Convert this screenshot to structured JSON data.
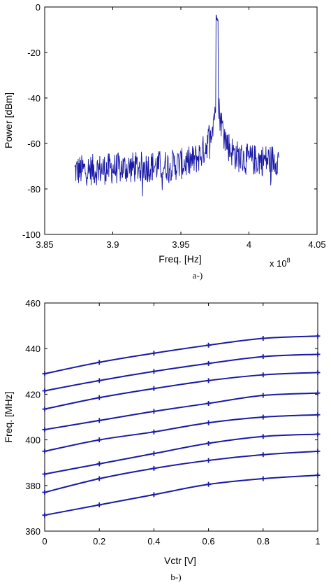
{
  "chart_data": [
    {
      "type": "line",
      "xlabel": "Freq. [Hz]",
      "ylabel": "Power [dBm]",
      "caption": "a-)",
      "x_multiplier_label": "x 10",
      "x_multiplier_exp": "8",
      "xlim": [
        3.85,
        4.05
      ],
      "ylim": [
        -100,
        0
      ],
      "xticks": [
        3.85,
        3.9,
        3.95,
        4,
        4.05
      ],
      "xtick_labels": [
        "3.85",
        "3.9",
        "3.95",
        "4",
        "4.05"
      ],
      "yticks": [
        -100,
        -80,
        -60,
        -40,
        -20,
        0
      ],
      "ytick_labels": [
        "-100",
        "-80",
        "-60",
        "-40",
        "-20",
        "0"
      ],
      "grid": false,
      "color": "#1a1aa6",
      "spectrum": {
        "x_start": 3.872,
        "x_end": 4.022,
        "peak_x": 3.9765,
        "peak_y": -6,
        "noise_floor_start": -72,
        "noise_floor_end": -67
      }
    },
    {
      "type": "line",
      "xlabel": "Vctr [V]",
      "ylabel": "Freq. [MHz]",
      "caption": "b-)",
      "xlim": [
        0,
        1
      ],
      "ylim": [
        360,
        460
      ],
      "xticks": [
        0,
        0.2,
        0.4,
        0.6,
        0.8,
        1
      ],
      "xtick_labels": [
        "0",
        "0.2",
        "0.4",
        "0.6",
        "0.8",
        "1"
      ],
      "yticks": [
        360,
        380,
        400,
        420,
        440,
        460
      ],
      "ytick_labels": [
        "360",
        "380",
        "400",
        "420",
        "440",
        "460"
      ],
      "grid": false,
      "color": "#1a1aa6",
      "x": [
        0,
        0.2,
        0.4,
        0.6,
        0.8,
        1
      ],
      "series": [
        {
          "values": [
            429,
            434,
            438,
            441.5,
            444.5,
            445.5
          ]
        },
        {
          "values": [
            421.5,
            426,
            430,
            433.5,
            436.5,
            437.5
          ]
        },
        {
          "values": [
            413.5,
            418.5,
            422.5,
            426,
            428.5,
            429.5
          ]
        },
        {
          "values": [
            404.5,
            408.5,
            412.5,
            416,
            419.5,
            420.5
          ]
        },
        {
          "values": [
            395,
            400,
            403.5,
            407.5,
            410,
            411
          ]
        },
        {
          "values": [
            385,
            389.5,
            394,
            398.5,
            401.5,
            402.5
          ]
        },
        {
          "values": [
            377,
            383,
            387.5,
            391,
            393.5,
            395
          ]
        },
        {
          "values": [
            367,
            371.5,
            376,
            380.5,
            383,
            384.5
          ]
        }
      ]
    }
  ]
}
